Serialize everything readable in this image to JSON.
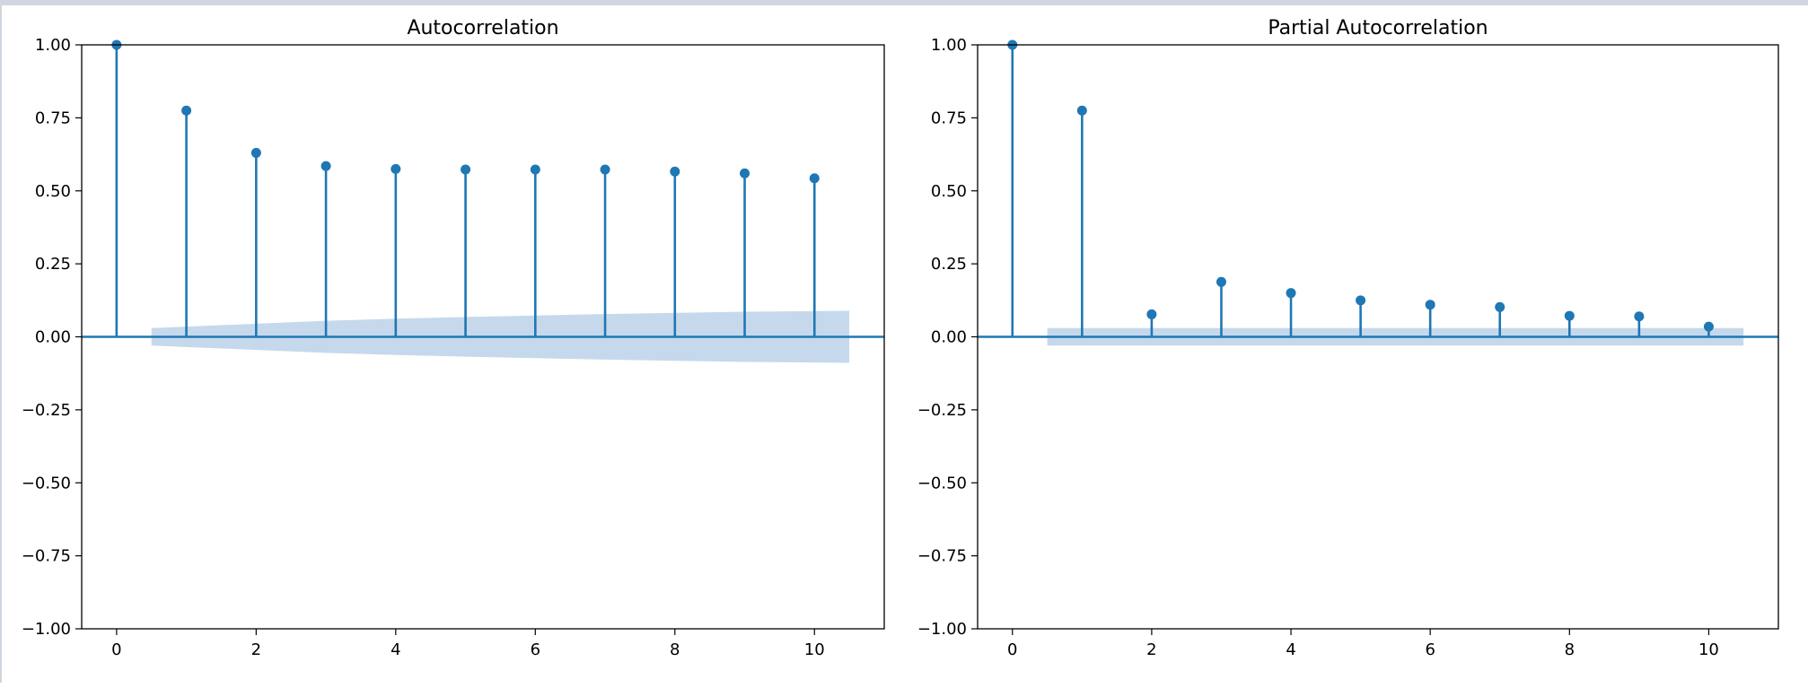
{
  "chart_data": [
    {
      "type": "stem",
      "title": "Autocorrelation",
      "xlabel": "",
      "ylabel": "",
      "xlim": [
        -0.5,
        11
      ],
      "ylim": [
        -1.0,
        1.0
      ],
      "x_ticks": [
        "0",
        "2",
        "4",
        "6",
        "8",
        "10"
      ],
      "y_ticks": [
        "1.00",
        "0.75",
        "0.50",
        "0.25",
        "0.00",
        "−0.25",
        "−0.50",
        "−0.75",
        "−1.00"
      ],
      "lags": [
        0,
        1,
        2,
        3,
        4,
        5,
        6,
        7,
        8,
        9,
        10
      ],
      "values": [
        1.0,
        0.775,
        0.63,
        0.585,
        0.575,
        0.573,
        0.573,
        0.573,
        0.566,
        0.56,
        0.543
      ],
      "confidence_band": {
        "lags": [
          1,
          2,
          3,
          4,
          5,
          6,
          7,
          8,
          9,
          10
        ],
        "upper": [
          0.03,
          0.045,
          0.055,
          0.062,
          0.068,
          0.073,
          0.078,
          0.082,
          0.086,
          0.089
        ],
        "lower": [
          -0.03,
          -0.045,
          -0.055,
          -0.062,
          -0.068,
          -0.073,
          -0.078,
          -0.082,
          -0.086,
          -0.089
        ]
      },
      "grid": false,
      "color": "#1f77b4",
      "band_color": "#c6d9ec"
    },
    {
      "type": "stem",
      "title": "Partial Autocorrelation",
      "xlabel": "",
      "ylabel": "",
      "xlim": [
        -0.5,
        11
      ],
      "ylim": [
        -1.0,
        1.0
      ],
      "x_ticks": [
        "0",
        "2",
        "4",
        "6",
        "8",
        "10"
      ],
      "y_ticks": [
        "1.00",
        "0.75",
        "0.50",
        "0.25",
        "0.00",
        "−0.25",
        "−0.50",
        "−0.75",
        "−1.00"
      ],
      "lags": [
        0,
        1,
        2,
        3,
        4,
        5,
        6,
        7,
        8,
        9,
        10
      ],
      "values": [
        1.0,
        0.775,
        0.077,
        0.188,
        0.15,
        0.125,
        0.11,
        0.102,
        0.072,
        0.07,
        0.035
      ],
      "confidence_band": {
        "lags": [
          1,
          2,
          3,
          4,
          5,
          6,
          7,
          8,
          9,
          10
        ],
        "upper": [
          0.03,
          0.03,
          0.03,
          0.03,
          0.03,
          0.03,
          0.03,
          0.03,
          0.03,
          0.03
        ],
        "lower": [
          -0.03,
          -0.03,
          -0.03,
          -0.03,
          -0.03,
          -0.03,
          -0.03,
          -0.03,
          -0.03,
          -0.03
        ]
      },
      "grid": false,
      "color": "#1f77b4",
      "band_color": "#c6d9ec"
    }
  ]
}
